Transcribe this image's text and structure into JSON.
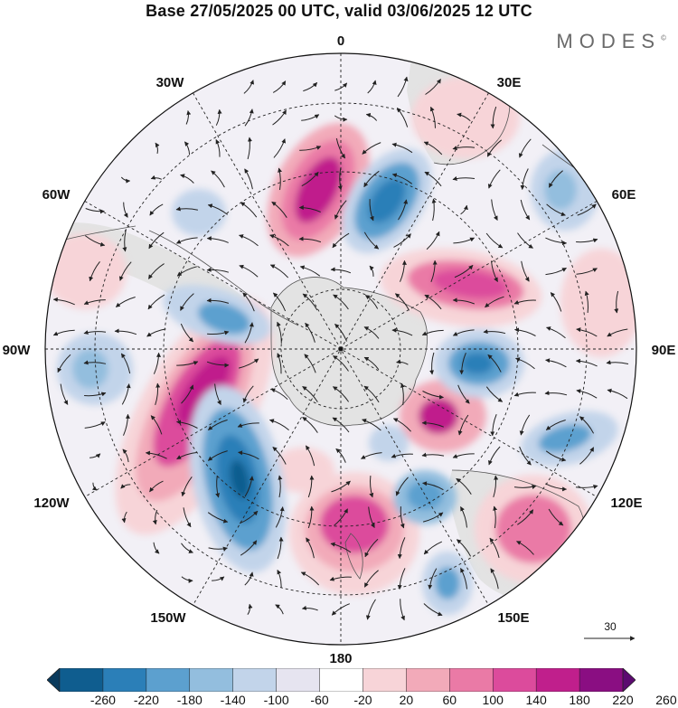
{
  "title": "Base 27/05/2025 00 UTC, valid 03/06/2025 12 UTC",
  "brand": "MODES",
  "brand_mark": "©",
  "longitude_labels": {
    "lon_0": "0",
    "lon_30e": "30E",
    "lon_60e": "60E",
    "lon_90e": "90E",
    "lon_120e": "120E",
    "lon_150e": "150E",
    "lon_180": "180",
    "lon_150w": "150W",
    "lon_120w": "120W",
    "lon_90w": "90W",
    "lon_60w": "60W",
    "lon_30w": "30W"
  },
  "vector_reference": "30",
  "legend": {
    "colors": [
      "#0a3a5c",
      "#0f5d8f",
      "#2b7fb8",
      "#5ca0cf",
      "#93bede",
      "#c2d4ea",
      "#e6e4f0",
      "#ffffff",
      "#f7d4d8",
      "#f2aab9",
      "#ea7aa6",
      "#dc4b9c",
      "#c01f8c",
      "#8a0e82",
      "#5c0a70"
    ],
    "ticks": [
      "-260",
      "-220",
      "-180",
      "-140",
      "-100",
      "-60",
      "-20",
      "20",
      "60",
      "100",
      "140",
      "180",
      "220",
      "260"
    ]
  },
  "colors": {
    "land": "#e3e3e3",
    "coast": "#555555",
    "grid": "#222222"
  }
}
